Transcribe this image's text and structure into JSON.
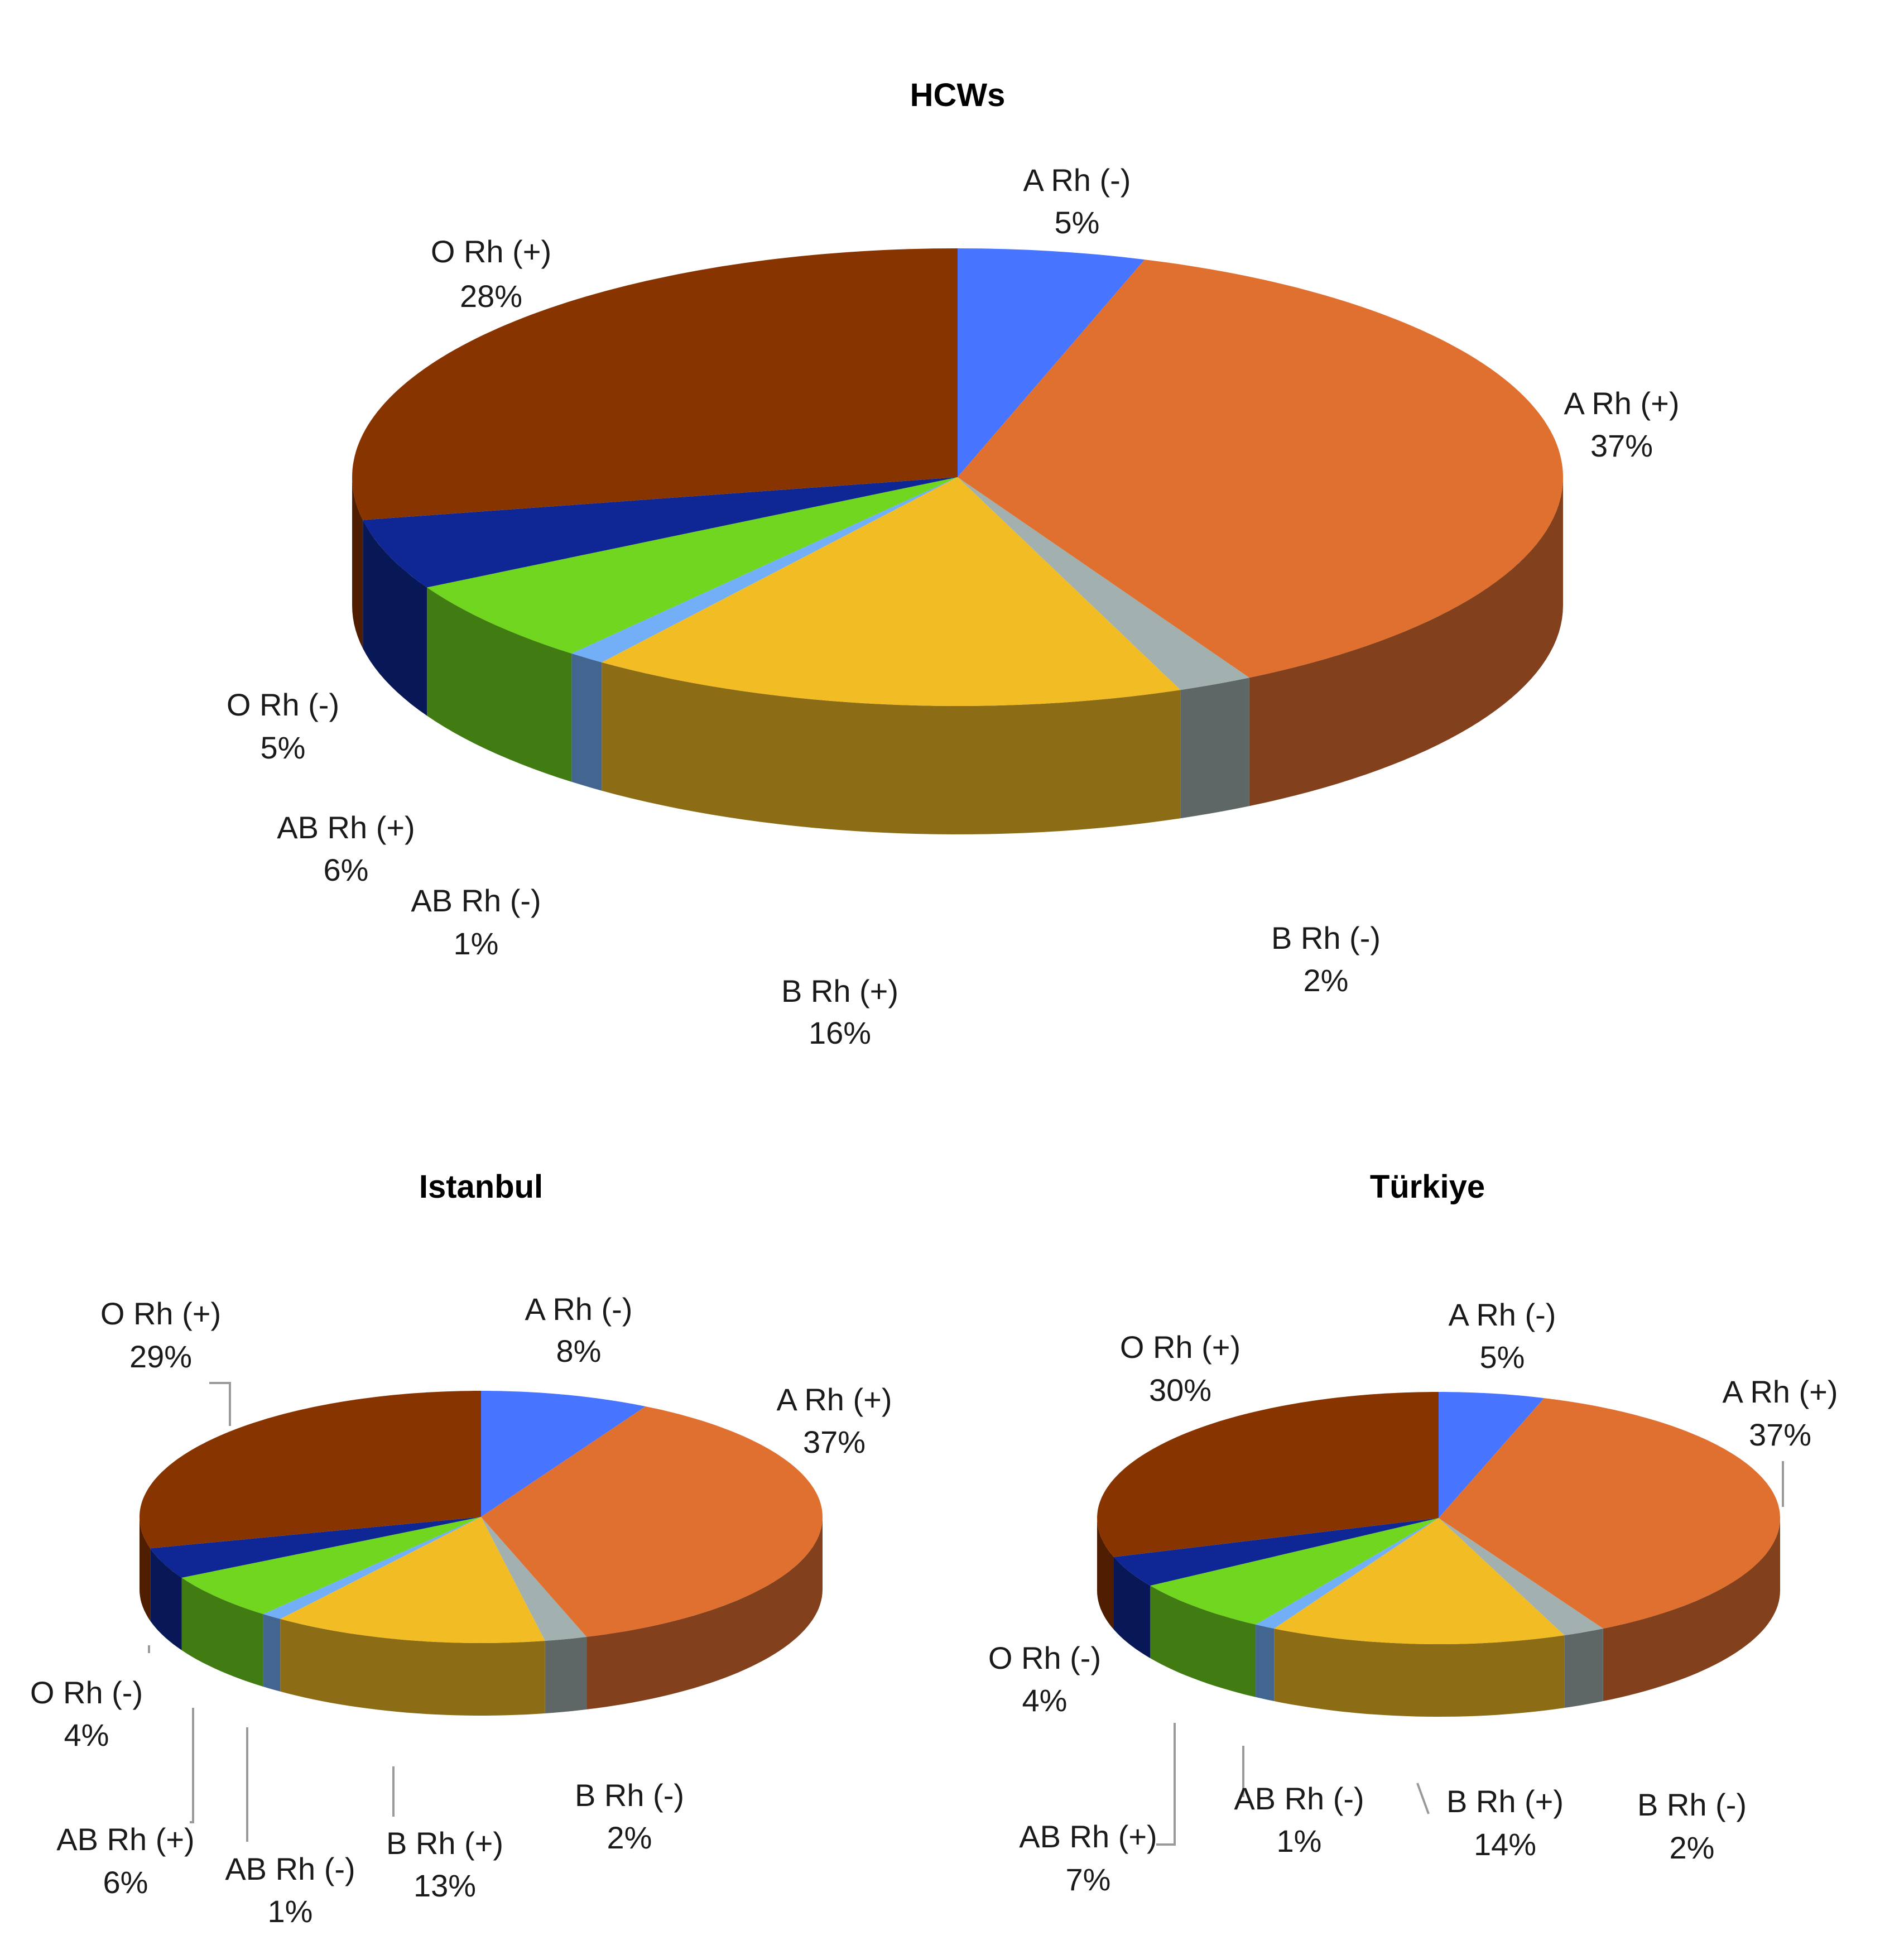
{
  "chart_data": [
    {
      "type": "pie",
      "title": "HCWs",
      "legend": "none",
      "labels": [
        "A Rh (-)",
        "A Rh (+)",
        "B Rh (-)",
        "B Rh (+)",
        "AB Rh (-)",
        "AB Rh (+)",
        "O Rh (-)",
        "O Rh (+)"
      ],
      "values": [
        5,
        37,
        2,
        16,
        1,
        6,
        5,
        28
      ],
      "value_labels": [
        "5%",
        "37%",
        "2%",
        "16%",
        "1%",
        "6%",
        "5%",
        "28%"
      ],
      "colors": [
        "#4775FF",
        "#E07030",
        "#A2B1AF",
        "#F2BC24",
        "#72AFF7",
        "#70D620",
        "#0E2794",
        "#883400"
      ]
    },
    {
      "type": "pie",
      "title": "Istanbul",
      "legend": "none",
      "labels": [
        "A Rh (-)",
        "A Rh (+)",
        "B Rh (-)",
        "B Rh (+)",
        "AB Rh (-)",
        "AB Rh (+)",
        "O Rh (-)",
        "O Rh (+)"
      ],
      "values": [
        8,
        37,
        2,
        13,
        1,
        6,
        4,
        29
      ],
      "value_labels": [
        "8%",
        "37%",
        "2%",
        "13%",
        "1%",
        "6%",
        "4%",
        "29%"
      ],
      "colors": [
        "#4775FF",
        "#E07030",
        "#A2B1AF",
        "#F2BC24",
        "#72AFF7",
        "#70D620",
        "#0E2794",
        "#883400"
      ]
    },
    {
      "type": "pie",
      "title": "Türkiye",
      "legend": "none",
      "labels": [
        "A Rh (-)",
        "A Rh (+)",
        "B Rh (-)",
        "B Rh (+)",
        "AB Rh (-)",
        "AB Rh (+)",
        "O Rh (-)",
        "O Rh (+)"
      ],
      "values": [
        5,
        37,
        2,
        14,
        1,
        7,
        4,
        30
      ],
      "value_labels": [
        "5%",
        "37%",
        "2%",
        "14%",
        "1%",
        "7%",
        "4%",
        "30%"
      ],
      "colors": [
        "#4775FF",
        "#E07030",
        "#A2B1AF",
        "#F2BC24",
        "#72AFF7",
        "#70D620",
        "#0E2794",
        "#883400"
      ]
    }
  ]
}
